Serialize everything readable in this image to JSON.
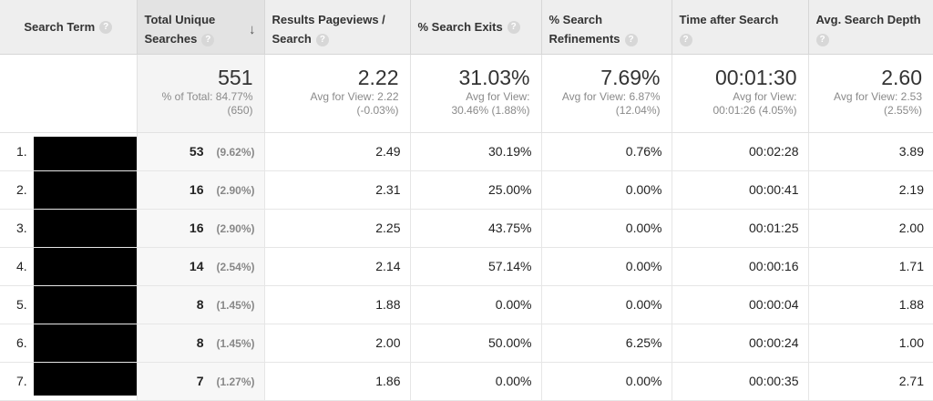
{
  "headers": {
    "term": "Search Term",
    "uniq": [
      "Total Unique",
      "Searches"
    ],
    "rpv": [
      "Results Pageviews /",
      "Search"
    ],
    "exit": "% Search Exits",
    "ref": [
      "% Search",
      "Refinements"
    ],
    "time": "Time after Search",
    "depth": "Avg. Search Depth",
    "help": "?",
    "sort": "↓"
  },
  "totals": {
    "uniq": {
      "value": "551",
      "sub1": "% of Total: 84.77%",
      "sub2": "(650)"
    },
    "rpv": {
      "value": "2.22",
      "sub1": "Avg for View: 2.22",
      "sub2": "(-0.03%)"
    },
    "exit": {
      "value": "31.03%",
      "sub1": "Avg for View:",
      "sub2": "30.46% (1.88%)"
    },
    "ref": {
      "value": "7.69%",
      "sub1": "Avg for View: 6.87%",
      "sub2": "(12.04%)"
    },
    "time": {
      "value": "00:01:30",
      "sub1": "Avg for View:",
      "sub2": "00:01:26 (4.05%)"
    },
    "depth": {
      "value": "2.60",
      "sub1": "Avg for View: 2.53",
      "sub2": "(2.55%)"
    }
  },
  "rows": [
    {
      "idx": "1.",
      "uniq": "53",
      "pct": "(9.62%)",
      "rpv": "2.49",
      "exit": "30.19%",
      "ref": "0.76%",
      "time": "00:02:28",
      "depth": "3.89"
    },
    {
      "idx": "2.",
      "uniq": "16",
      "pct": "(2.90%)",
      "rpv": "2.31",
      "exit": "25.00%",
      "ref": "0.00%",
      "time": "00:00:41",
      "depth": "2.19"
    },
    {
      "idx": "3.",
      "uniq": "16",
      "pct": "(2.90%)",
      "rpv": "2.25",
      "exit": "43.75%",
      "ref": "0.00%",
      "time": "00:01:25",
      "depth": "2.00"
    },
    {
      "idx": "4.",
      "uniq": "14",
      "pct": "(2.54%)",
      "rpv": "2.14",
      "exit": "57.14%",
      "ref": "0.00%",
      "time": "00:00:16",
      "depth": "1.71"
    },
    {
      "idx": "5.",
      "uniq": "8",
      "pct": "(1.45%)",
      "rpv": "1.88",
      "exit": "0.00%",
      "ref": "0.00%",
      "time": "00:00:04",
      "depth": "1.88"
    },
    {
      "idx": "6.",
      "uniq": "8",
      "pct": "(1.45%)",
      "rpv": "2.00",
      "exit": "50.00%",
      "ref": "6.25%",
      "time": "00:00:24",
      "depth": "1.00"
    },
    {
      "idx": "7.",
      "uniq": "7",
      "pct": "(1.27%)",
      "rpv": "1.86",
      "exit": "0.00%",
      "ref": "0.00%",
      "time": "00:00:35",
      "depth": "2.71"
    }
  ]
}
